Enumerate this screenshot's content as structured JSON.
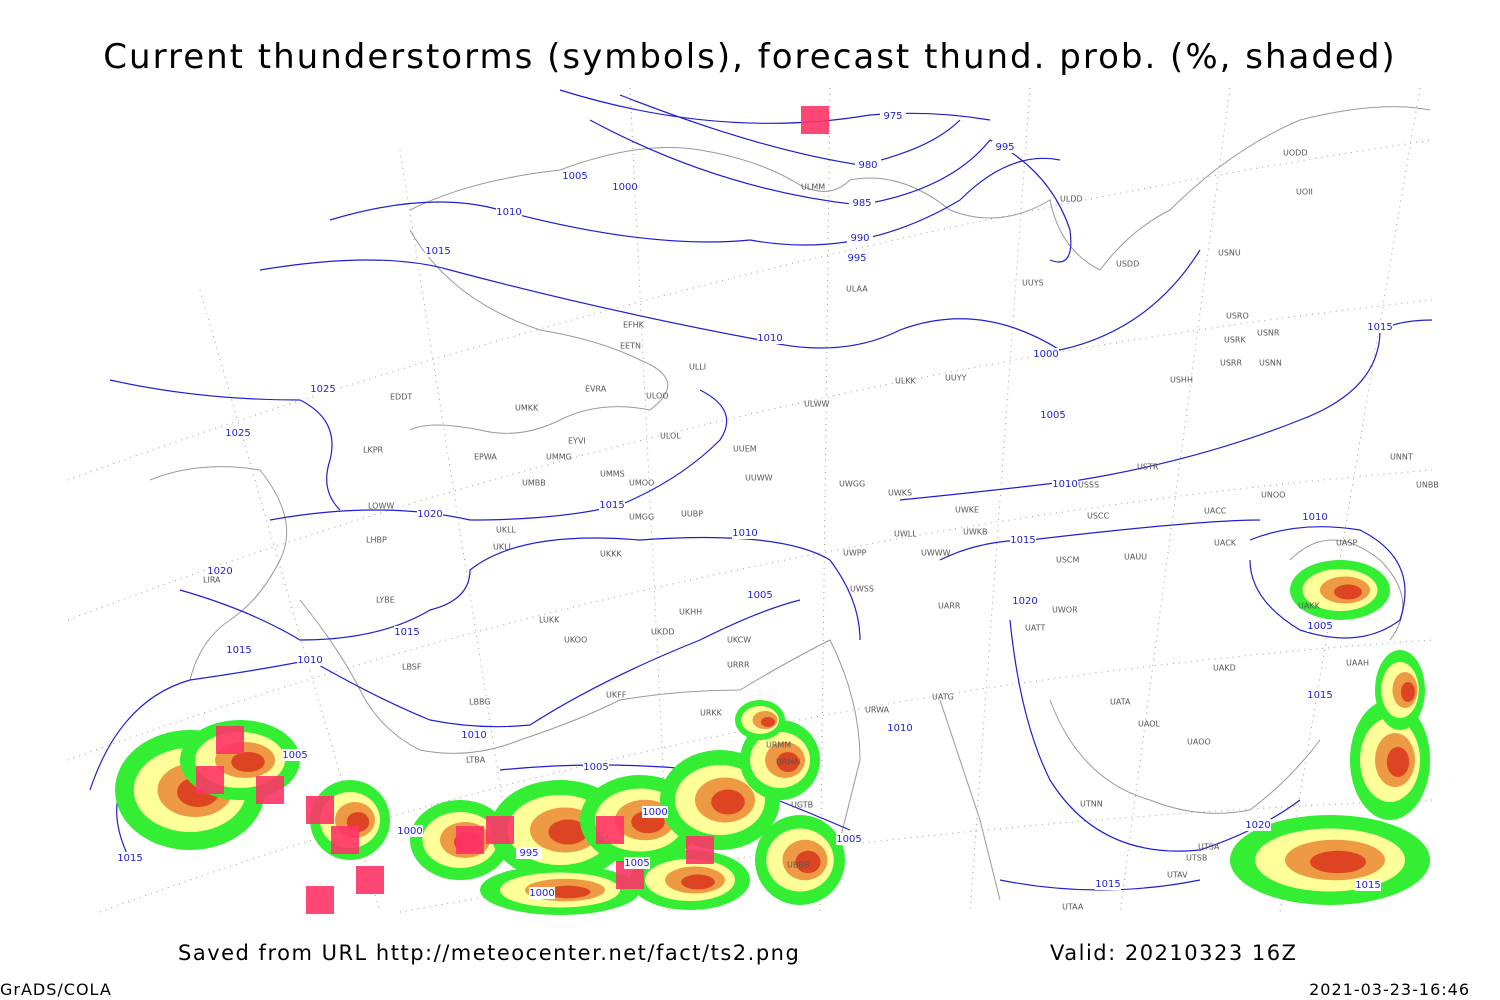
{
  "header": {
    "title": "Current thunderstorms (symbols), forecast thund. prob. (%, shaded)"
  },
  "isobar_labels": [
    "975",
    "980",
    "985",
    "990",
    "995",
    "995",
    "1005",
    "1000",
    "1010",
    "1015",
    "1010",
    "1000",
    "1005",
    "1025",
    "1025",
    "1020",
    "1015",
    "1010",
    "1010",
    "1015",
    "1010",
    "1015",
    "1020",
    "1015",
    "1015",
    "1010",
    "1005",
    "1020",
    "1005",
    "1015",
    "1010",
    "1010",
    "1005",
    "1005",
    "1000",
    "1000",
    "995",
    "1005",
    "1000",
    "1005",
    "1015",
    "1020",
    "1015",
    "1015"
  ],
  "station_labels": [
    "ULDD",
    "UODD",
    "UOII",
    "USDD",
    "USNU",
    "UUYS",
    "ULAA",
    "ULMM",
    "EFHK",
    "EETN",
    "ULLI",
    "UUYY",
    "ULKK",
    "USHH",
    "EVRA",
    "ULOO",
    "ULWW",
    "EDDT",
    "UMKK",
    "ULOL",
    "EYVI",
    "UUEM",
    "LKPR",
    "EPWA",
    "UMMG",
    "USTR",
    "UNNT",
    "UMMS",
    "UMOO",
    "UUWW",
    "UWGG",
    "UWKS",
    "USSS",
    "UNBB",
    "UMBB",
    "UNOO",
    "LOWW",
    "UMGG",
    "UUBP",
    "UWKE",
    "USCC",
    "UACC",
    "UKLL",
    "LHBP",
    "UKLI",
    "UWKB",
    "UWLL",
    "UACK",
    "UASP",
    "UKKK",
    "UWPP",
    "UWWW",
    "USCM",
    "UAUU",
    "LIRA",
    "UWSS",
    "LYBE",
    "LUKK",
    "UKOO",
    "UKDD",
    "UKHH",
    "UKCW",
    "URRR",
    "LBSF",
    "UARR",
    "UWOR",
    "UATT",
    "UAKD",
    "UATA",
    "UAOL",
    "UAOO",
    "UTNN",
    "UTSA",
    "UTSB",
    "UTAV",
    "UTAA",
    "URWA",
    "UATG",
    "LBBG",
    "UKFF",
    "URKK",
    "LTBA",
    "URMM",
    "URMN",
    "UGTB",
    "UBBB",
    "UAAH",
    "UAKK",
    "USRR",
    "USRK",
    "USNR",
    "USNN",
    "USRO"
  ],
  "footer": {
    "source": "Saved from URL  http://meteocenter.net/fact/ts2.png",
    "valid": "Valid: 20210323 16Z",
    "software": "GrADS/COLA",
    "timestamp": "2021-03-23-16:46"
  }
}
